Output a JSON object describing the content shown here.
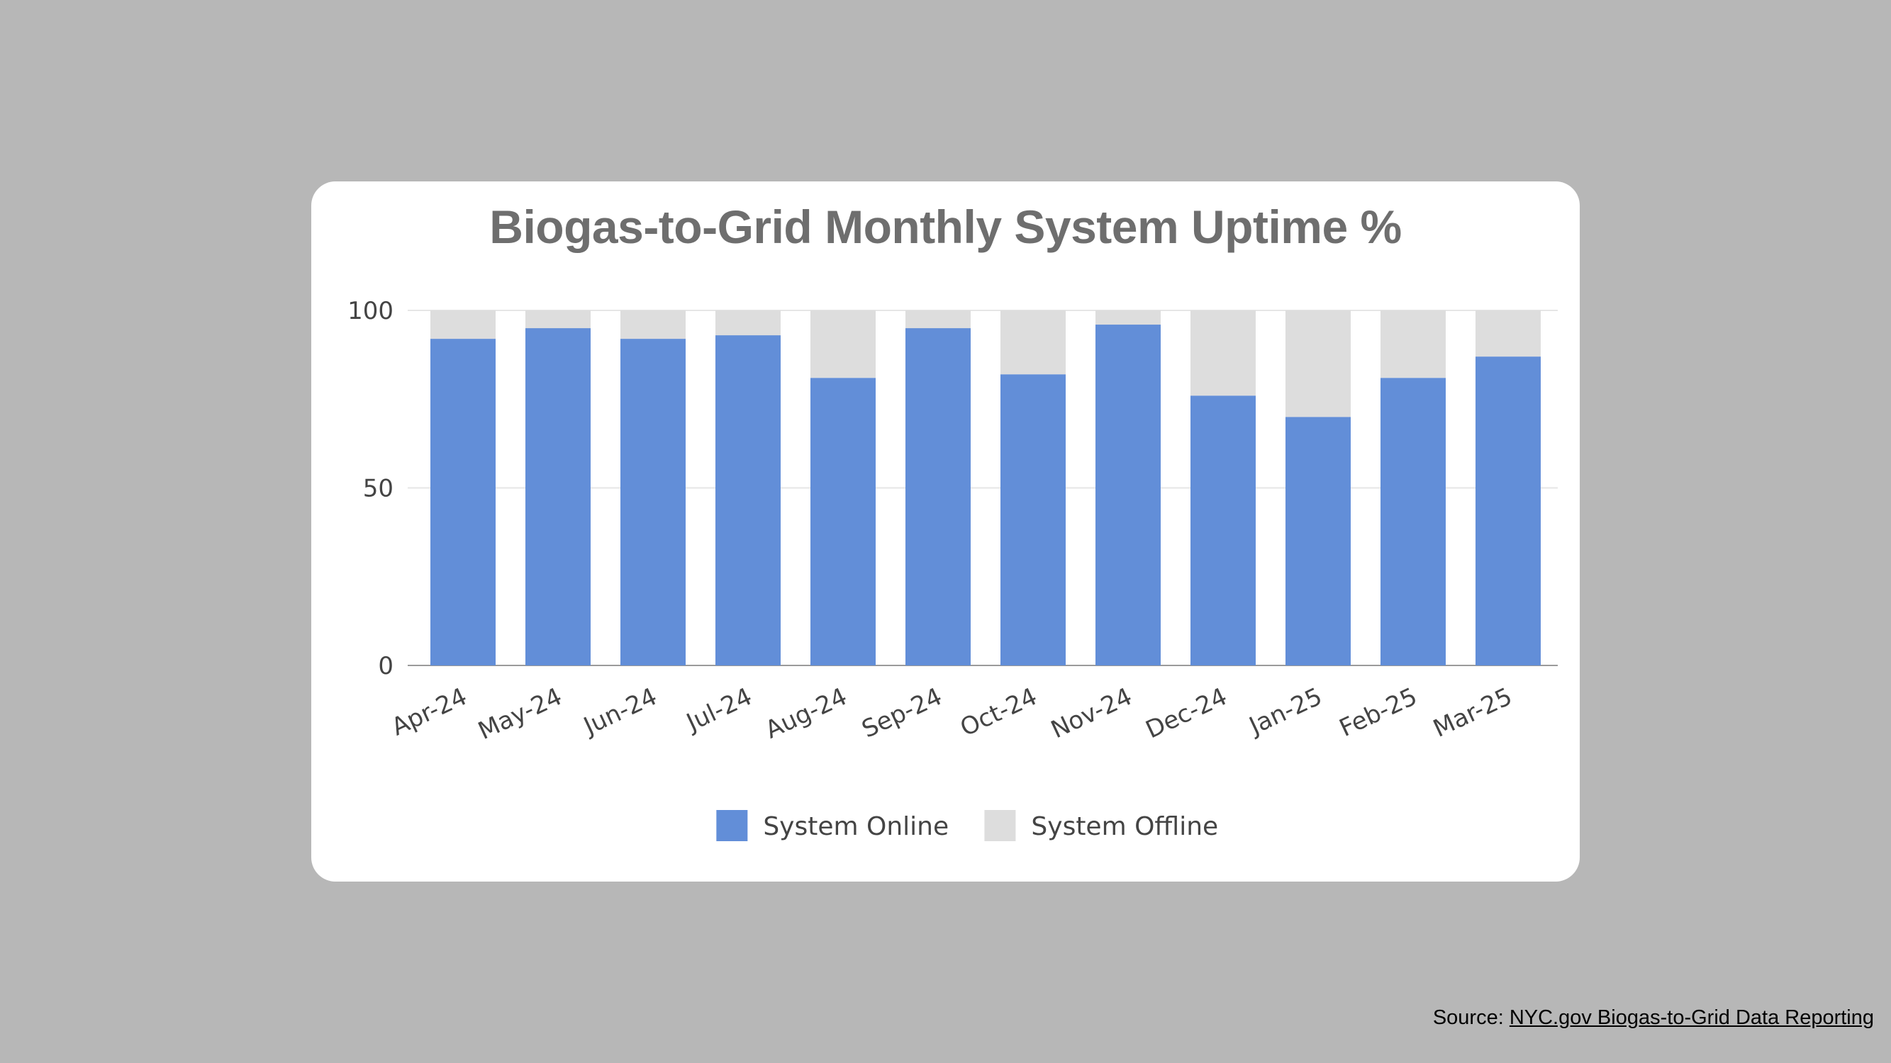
{
  "source": {
    "prefix": "Source: ",
    "link_text": "NYC.gov Biogas-to-Grid Data Reporting"
  },
  "colors": {
    "online": "#628ed8",
    "offline": "#dddddd",
    "grid": "#e6e6e6",
    "axis_text": "#444444",
    "title": "#6e6e6e"
  },
  "chart_data": {
    "type": "bar",
    "stacked": true,
    "title": "Biogas-to-Grid Monthly System Uptime %",
    "xlabel": "",
    "ylabel": "",
    "ylim": [
      0,
      100
    ],
    "yticks": [
      0,
      50,
      100
    ],
    "grid": true,
    "legend_position": "bottom",
    "categories": [
      "Apr-24",
      "May-24",
      "Jun-24",
      "Jul-24",
      "Aug-24",
      "Sep-24",
      "Oct-24",
      "Nov-24",
      "Dec-24",
      "Jan-25",
      "Feb-25",
      "Mar-25"
    ],
    "series": [
      {
        "name": "System Online",
        "color": "#628ed8",
        "values": [
          92,
          95,
          92,
          93,
          81,
          95,
          82,
          96,
          76,
          70,
          81,
          87
        ]
      },
      {
        "name": "System Offline",
        "color": "#dddddd",
        "values": [
          8,
          5,
          8,
          7,
          19,
          5,
          18,
          4,
          24,
          30,
          19,
          13
        ]
      }
    ]
  }
}
